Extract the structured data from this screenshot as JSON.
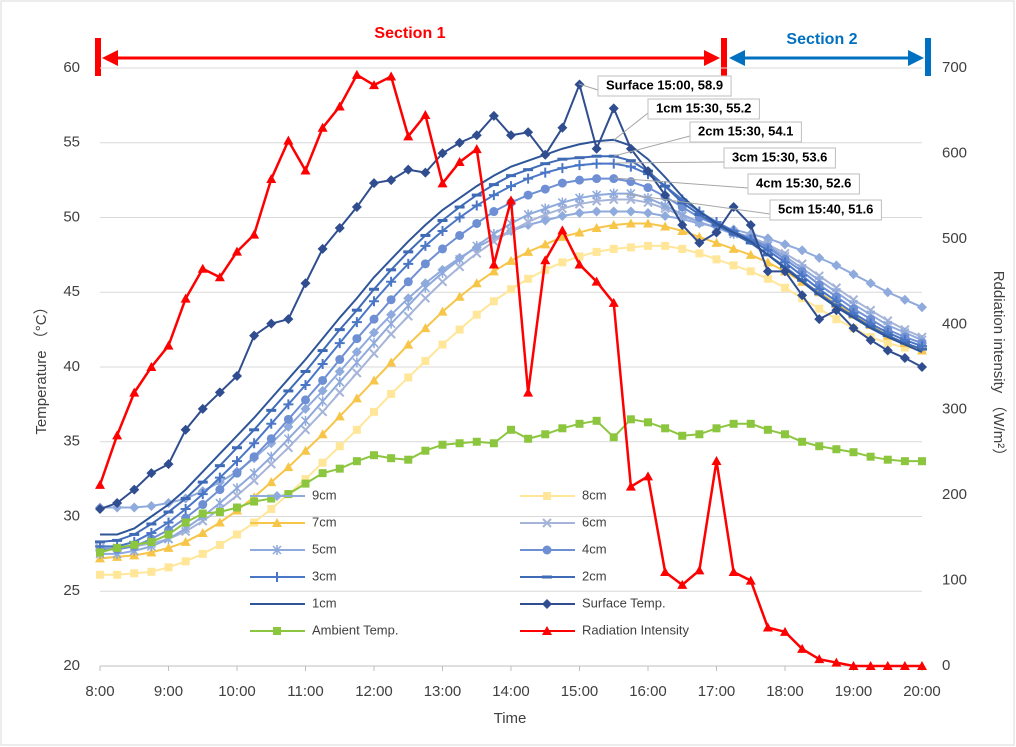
{
  "chart_data": {
    "type": "line",
    "xlabel": "Time",
    "ylabel": "Temperature （°C）",
    "y2label": "Rddiation intensity （W/m²）",
    "sections": [
      "Section 1",
      "Section 2"
    ],
    "callouts": [
      "Surface 15:00, 58.9",
      "1cm 15:30, 55.2",
      "2cm 15:30, 54.1",
      "3cm 15:30, 53.6",
      "4cm 15:30, 52.6",
      "5cm 15:40, 51.6"
    ],
    "grid": true,
    "legend": "lower left",
    "xlim": [
      8,
      20
    ],
    "xticks": [
      {
        "value": 8,
        "label": "8:00"
      },
      {
        "value": 9,
        "label": "9:00"
      },
      {
        "value": 10,
        "label": "10:00"
      },
      {
        "value": 11,
        "label": "11:00"
      },
      {
        "value": 12,
        "label": "12:00"
      },
      {
        "value": 13,
        "label": "13:00"
      },
      {
        "value": 14,
        "label": "14:00"
      },
      {
        "value": 15,
        "label": "15:00"
      },
      {
        "value": 16,
        "label": "16:00"
      },
      {
        "value": 17,
        "label": "17:00"
      },
      {
        "value": 18,
        "label": "18:00"
      },
      {
        "value": 19,
        "label": "19:00"
      },
      {
        "value": 20,
        "label": "20:00"
      }
    ],
    "ylim": [
      20,
      60
    ],
    "yticks": [
      20,
      25,
      30,
      35,
      40,
      45,
      50,
      55,
      60
    ],
    "y2lim": [
      0,
      700
    ],
    "y2ticks": [
      0,
      100,
      200,
      300,
      400,
      500,
      600,
      700
    ],
    "x": [
      8,
      8.25,
      8.5,
      8.75,
      9,
      9.25,
      9.5,
      9.75,
      10,
      10.25,
      10.5,
      10.75,
      11,
      11.25,
      11.5,
      11.75,
      12,
      12.25,
      12.5,
      12.75,
      13,
      13.25,
      13.5,
      13.75,
      14,
      14.25,
      14.5,
      14.75,
      15,
      15.25,
      15.5,
      15.75,
      16,
      16.25,
      16.5,
      16.75,
      17,
      17.25,
      17.5,
      17.75,
      18,
      18.25,
      18.5,
      18.75,
      19,
      19.25,
      19.5,
      19.75,
      20
    ],
    "series": [
      {
        "name": "9cm",
        "color": "#8faadc",
        "marker": "diamond",
        "values": [
          30.6,
          30.6,
          30.6,
          30.7,
          30.9,
          31.2,
          31.7,
          32.3,
          33.0,
          33.9,
          34.9,
          36.0,
          37.2,
          38.4,
          39.7,
          41.0,
          42.3,
          43.5,
          44.6,
          45.6,
          46.5,
          47.3,
          48.0,
          48.6,
          49.1,
          49.5,
          49.8,
          50.1,
          50.3,
          50.4,
          50.4,
          50.4,
          50.3,
          50.1,
          49.9,
          49.6,
          49.4,
          49.2,
          48.9,
          48.6,
          48.2,
          47.8,
          47.3,
          46.8,
          46.2,
          45.6,
          45.0,
          44.5,
          44.0
        ]
      },
      {
        "name": "8cm",
        "color": "#ffe699",
        "marker": "square",
        "values": [
          26.1,
          26.1,
          26.2,
          26.3,
          26.6,
          27.0,
          27.5,
          28.1,
          28.8,
          29.6,
          30.5,
          31.5,
          32.5,
          33.6,
          34.7,
          35.8,
          37.0,
          38.2,
          39.3,
          40.4,
          41.5,
          42.5,
          43.5,
          44.4,
          45.2,
          45.9,
          46.5,
          47.0,
          47.4,
          47.7,
          47.9,
          48.0,
          48.1,
          48.1,
          47.9,
          47.6,
          47.2,
          46.8,
          46.4,
          45.9,
          45.3,
          44.6,
          43.9,
          43.2,
          42.6,
          42.0,
          41.6,
          41.3,
          41.2
        ]
      },
      {
        "name": "7cm",
        "color": "#f7c548",
        "marker": "triangle",
        "values": [
          27.2,
          27.3,
          27.4,
          27.6,
          27.9,
          28.3,
          28.9,
          29.6,
          30.4,
          31.3,
          32.3,
          33.3,
          34.4,
          35.5,
          36.7,
          37.9,
          39.1,
          40.3,
          41.5,
          42.6,
          43.7,
          44.7,
          45.6,
          46.4,
          47.1,
          47.7,
          48.2,
          48.7,
          49.0,
          49.3,
          49.5,
          49.6,
          49.6,
          49.4,
          49.1,
          48.7,
          48.3,
          47.9,
          47.5,
          47.0,
          46.4,
          45.7,
          45.0,
          44.2,
          43.5,
          42.8,
          42.1,
          41.6,
          41.1
        ]
      },
      {
        "name": "6cm",
        "color": "#a5b4d8",
        "marker": "x",
        "values": [
          27.9,
          27.9,
          28.0,
          28.2,
          28.5,
          29.0,
          29.7,
          30.5,
          31.4,
          32.4,
          33.5,
          34.6,
          35.8,
          37.0,
          38.3,
          39.6,
          40.9,
          42.2,
          43.4,
          44.6,
          45.7,
          46.7,
          47.6,
          48.4,
          49.1,
          49.7,
          50.2,
          50.6,
          50.9,
          51.1,
          51.2,
          51.2,
          51.0,
          50.6,
          50.1,
          49.7,
          49.3,
          49.0,
          48.7,
          48.2,
          47.6,
          46.9,
          46.1,
          45.3,
          44.5,
          43.8,
          43.1,
          42.5,
          42.0
        ]
      },
      {
        "name": "5cm",
        "color": "#8ea9db",
        "marker": "star",
        "values": [
          27.5,
          27.5,
          27.7,
          28.0,
          28.5,
          29.2,
          30.0,
          30.9,
          31.9,
          32.9,
          34.0,
          35.2,
          36.4,
          37.7,
          39.0,
          40.3,
          41.6,
          42.9,
          44.1,
          45.3,
          46.3,
          47.2,
          48.1,
          48.9,
          49.6,
          50.2,
          50.6,
          51.0,
          51.3,
          51.5,
          51.6,
          51.6,
          51.3,
          50.8,
          50.2,
          49.7,
          49.3,
          48.9,
          48.6,
          48.1,
          47.4,
          46.6,
          45.8,
          45.0,
          44.2,
          43.5,
          42.8,
          42.3,
          41.8
        ]
      },
      {
        "name": "4cm",
        "color": "#6e8fd3",
        "marker": "circle",
        "values": [
          27.8,
          27.8,
          28.0,
          28.5,
          29.1,
          29.9,
          30.8,
          31.8,
          32.9,
          34.0,
          35.2,
          36.5,
          37.8,
          39.1,
          40.5,
          41.9,
          43.2,
          44.5,
          45.7,
          46.9,
          47.9,
          48.8,
          49.6,
          50.4,
          51.0,
          51.5,
          51.9,
          52.3,
          52.5,
          52.6,
          52.6,
          52.4,
          52.0,
          51.4,
          50.7,
          50.0,
          49.5,
          49.0,
          48.6,
          48.0,
          47.2,
          46.4,
          45.5,
          44.7,
          43.9,
          43.2,
          42.5,
          42.0,
          41.6
        ]
      },
      {
        "name": "3cm",
        "color": "#4a76c6",
        "marker": "plus",
        "values": [
          28.0,
          28.0,
          28.3,
          28.9,
          29.6,
          30.5,
          31.5,
          32.6,
          33.7,
          34.9,
          36.2,
          37.5,
          38.8,
          40.2,
          41.6,
          43.0,
          44.4,
          45.7,
          46.9,
          48.1,
          49.1,
          50.0,
          50.8,
          51.5,
          52.1,
          52.6,
          53.0,
          53.3,
          53.5,
          53.6,
          53.6,
          53.4,
          52.9,
          52.1,
          51.2,
          50.4,
          49.7,
          49.1,
          48.5,
          47.8,
          47.0,
          46.1,
          45.2,
          44.4,
          43.6,
          42.9,
          42.3,
          41.8,
          41.4
        ]
      },
      {
        "name": "2cm",
        "color": "#3f6ab5",
        "marker": "dash",
        "values": [
          28.3,
          28.4,
          28.8,
          29.5,
          30.3,
          31.2,
          32.3,
          33.4,
          34.6,
          35.8,
          37.1,
          38.4,
          39.7,
          41.1,
          42.5,
          43.8,
          45.2,
          46.5,
          47.7,
          48.8,
          49.8,
          50.7,
          51.5,
          52.2,
          52.8,
          53.2,
          53.6,
          53.9,
          54.0,
          54.1,
          54.1,
          53.8,
          53.1,
          52.1,
          51.0,
          50.2,
          49.5,
          48.9,
          48.3,
          47.5,
          46.7,
          45.8,
          44.9,
          44.1,
          43.4,
          42.7,
          42.1,
          41.6,
          41.2
        ]
      },
      {
        "name": "1cm",
        "color": "#2e5597",
        "marker": "none",
        "values": [
          28.8,
          28.8,
          29.2,
          30.0,
          30.8,
          31.8,
          33.0,
          34.2,
          35.4,
          36.6,
          37.9,
          39.2,
          40.5,
          41.9,
          43.3,
          44.6,
          46.0,
          47.2,
          48.4,
          49.5,
          50.5,
          51.3,
          52.1,
          52.8,
          53.4,
          53.8,
          54.2,
          54.6,
          54.9,
          55.1,
          55.2,
          54.8,
          53.9,
          52.7,
          51.4,
          50.4,
          49.6,
          49.0,
          48.4,
          47.5,
          46.6,
          45.7,
          44.8,
          44.0,
          43.3,
          42.6,
          42.0,
          41.5,
          41.0
        ]
      },
      {
        "name": "Surface Temp.",
        "color": "#2f4d8f",
        "marker": "diamond",
        "values": [
          30.5,
          30.9,
          31.8,
          32.9,
          33.5,
          35.8,
          37.2,
          38.3,
          39.4,
          42.1,
          42.9,
          43.2,
          45.6,
          47.9,
          49.3,
          50.7,
          52.3,
          52.5,
          53.2,
          53.0,
          54.3,
          55.0,
          55.5,
          56.8,
          55.5,
          55.7,
          54.2,
          56.0,
          58.9,
          54.6,
          57.3,
          54.6,
          53.1,
          51.5,
          49.5,
          48.3,
          49.0,
          50.7,
          49.5,
          46.4,
          46.4,
          44.8,
          43.2,
          43.8,
          42.6,
          41.8,
          41.1,
          40.6,
          40.0
        ]
      },
      {
        "name": "Ambient Temp.",
        "color": "#8cc63f",
        "marker": "square",
        "values": [
          27.6,
          27.9,
          28.1,
          28.3,
          28.8,
          29.6,
          30.2,
          30.3,
          30.6,
          31.0,
          31.2,
          31.5,
          32.2,
          32.9,
          33.2,
          33.7,
          34.1,
          33.9,
          33.8,
          34.4,
          34.8,
          34.9,
          35.0,
          34.9,
          35.8,
          35.2,
          35.5,
          35.9,
          36.2,
          36.4,
          35.3,
          36.5,
          36.3,
          35.9,
          35.4,
          35.5,
          35.9,
          36.2,
          36.2,
          35.8,
          35.5,
          35.0,
          34.7,
          34.5,
          34.3,
          34.0,
          33.8,
          33.7,
          33.7
        ]
      },
      {
        "name": "Radiation Intensity",
        "color": "#ff0000",
        "marker": "triangle",
        "axis": "y2",
        "values": [
          212,
          270,
          320,
          350,
          375,
          430,
          465,
          455,
          485,
          505,
          570,
          615,
          580,
          630,
          655,
          692,
          680,
          690,
          620,
          645,
          565,
          590,
          605,
          470,
          545,
          320,
          475,
          510,
          470,
          450,
          425,
          210,
          222,
          110,
          95,
          112,
          240,
          110,
          100,
          45,
          40,
          20,
          8,
          4,
          0,
          0,
          0,
          0,
          0
        ]
      }
    ]
  }
}
